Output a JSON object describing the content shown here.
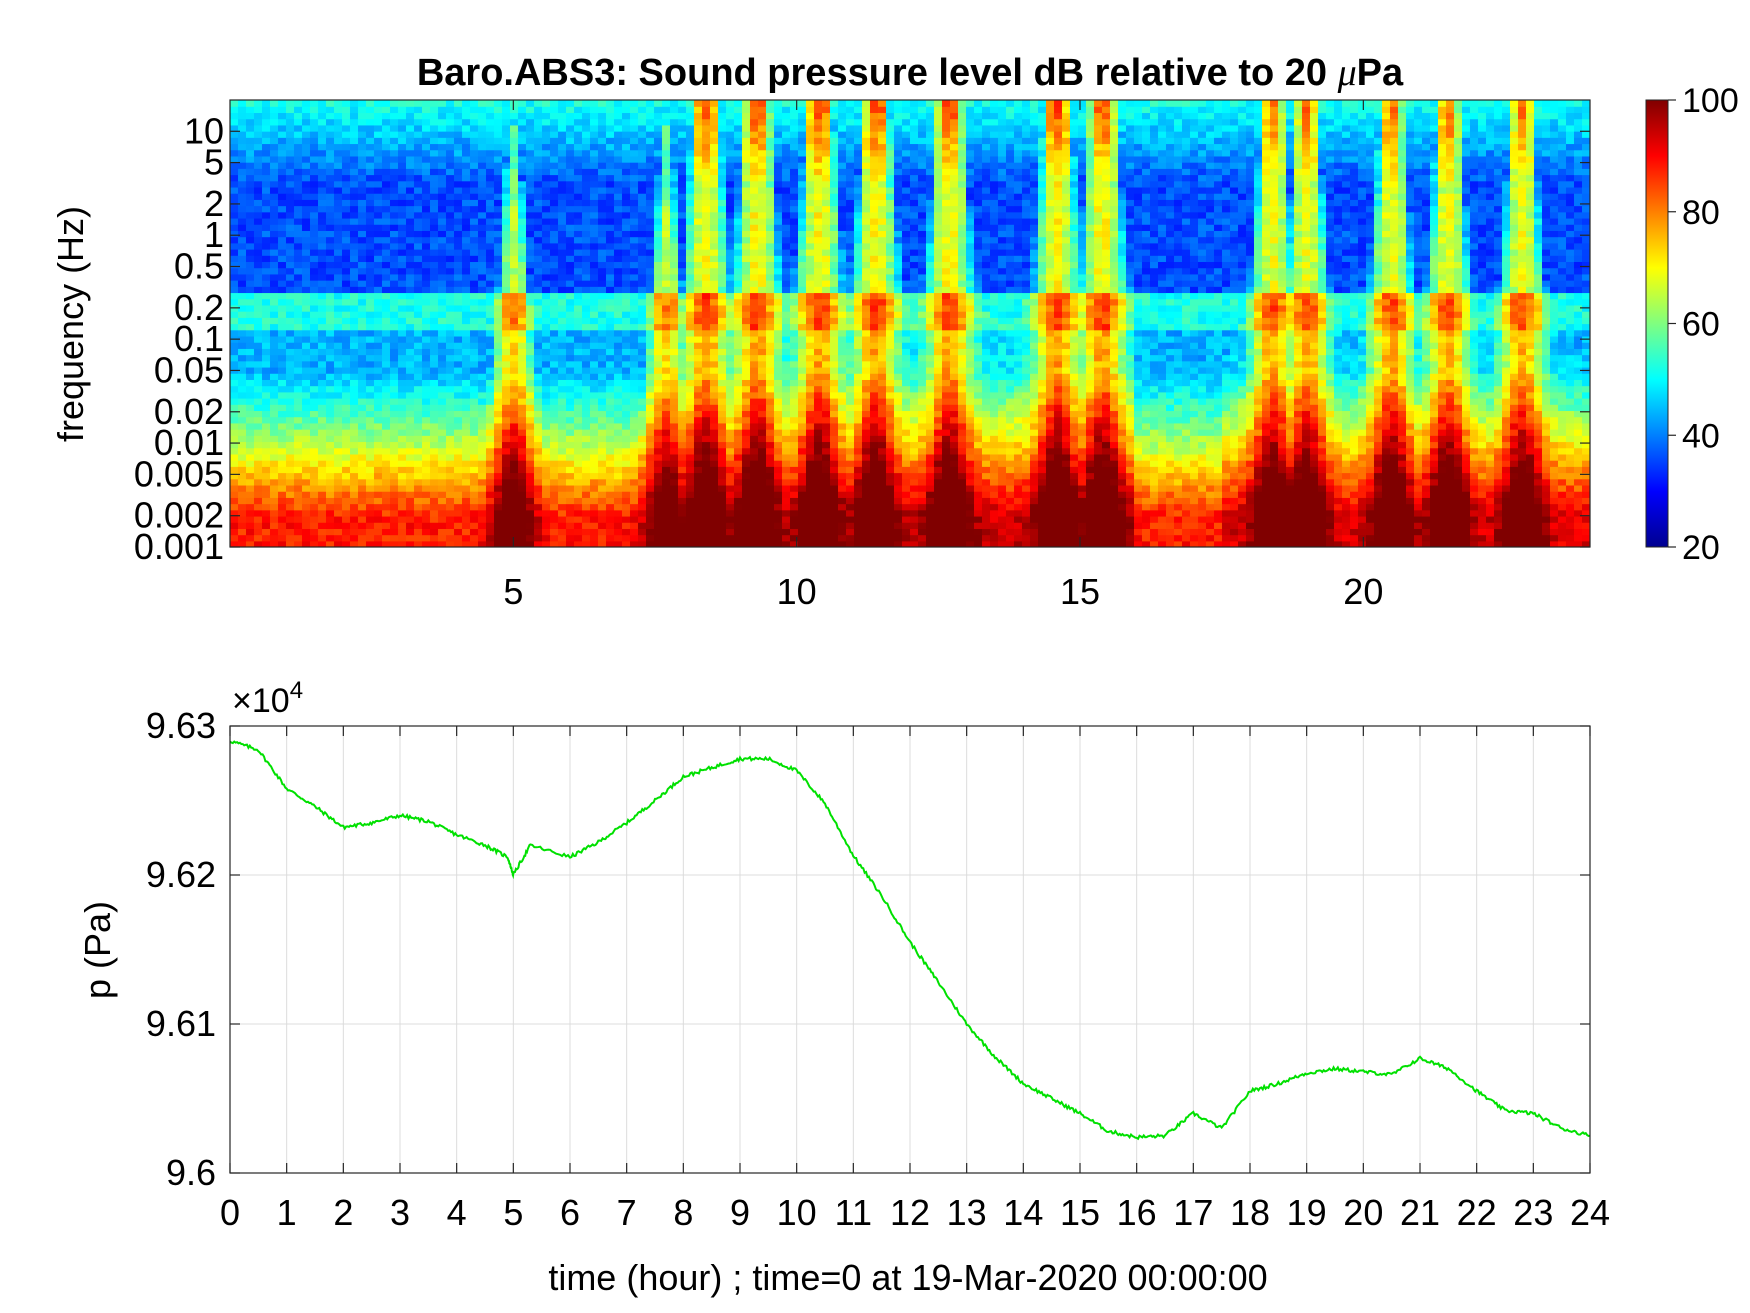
{
  "chart_data": [
    {
      "type": "heatmap",
      "title": "Baro.ABS3: Sound pressure level dB relative to 20 μPa",
      "title_prefix": "Baro.ABS3: Sound pressure level dB relative to 20 ",
      "title_unit_mu": "μ",
      "title_unit_rest": "Pa",
      "ylabel": "frequency (Hz)",
      "yscale": "log",
      "xlim": [
        0,
        24
      ],
      "ylim": [
        0.001,
        20
      ],
      "x_ticks": [
        5,
        10,
        15,
        20
      ],
      "x_tick_labels": [
        "5",
        "10",
        "15",
        "20"
      ],
      "y_ticks": [
        0.001,
        0.002,
        0.005,
        0.01,
        0.02,
        0.05,
        0.1,
        0.2,
        0.5,
        1,
        2,
        5,
        10
      ],
      "y_tick_labels": [
        "0.001",
        "0.002",
        "0.005",
        "0.01",
        "0.02",
        "0.05",
        "0.1",
        "0.2",
        "0.5",
        "1",
        "2",
        "5",
        "10"
      ],
      "colorbar": {
        "range": [
          20,
          100
        ],
        "ticks": [
          20,
          40,
          60,
          80,
          100
        ],
        "tick_labels": [
          "20",
          "40",
          "60",
          "80",
          "100"
        ],
        "colormap": "jet"
      },
      "activity_peaks_hour": [
        5,
        7.7,
        8.4,
        9.3,
        10.4,
        11.4,
        12.7,
        14.6,
        15.4,
        18.4,
        19.0,
        20.5,
        21.5,
        22.8
      ],
      "grid": false
    },
    {
      "type": "line",
      "ylabel": "p (Pa)",
      "xlabel": "time (hour) ; time=0 at 19-Mar-2020 00:00:00",
      "exponent_label": "×10",
      "exponent_power": "4",
      "xlim": [
        0,
        24
      ],
      "ylim": [
        96000,
        96300
      ],
      "x_ticks": [
        0,
        1,
        2,
        3,
        4,
        5,
        6,
        7,
        8,
        9,
        10,
        11,
        12,
        13,
        14,
        15,
        16,
        17,
        18,
        19,
        20,
        21,
        22,
        23,
        24
      ],
      "x_tick_labels": [
        "0",
        "1",
        "2",
        "3",
        "4",
        "5",
        "6",
        "7",
        "8",
        "9",
        "10",
        "11",
        "12",
        "13",
        "14",
        "15",
        "16",
        "17",
        "18",
        "19",
        "20",
        "21",
        "22",
        "23",
        "24"
      ],
      "y_ticks": [
        96000,
        96100,
        96200,
        96300
      ],
      "y_tick_labels": [
        "9.6",
        "9.61",
        "9.62",
        "9.63"
      ],
      "grid": true,
      "line_color": "#00e000",
      "series": [
        {
          "x": [
            0,
            0.5,
            1,
            1.5,
            2,
            2.5,
            3,
            3.5,
            4,
            4.5,
            4.9,
            5,
            5.3,
            6,
            6.5,
            7,
            7.5,
            8,
            8.5,
            9,
            9.5,
            10,
            10.5,
            11,
            11.5,
            12,
            12.5,
            13,
            13.5,
            14,
            14.5,
            15,
            15.5,
            16,
            16.5,
            17,
            17.5,
            18,
            18.5,
            19,
            19.5,
            20,
            20.5,
            21,
            21.5,
            22,
            22.5,
            23,
            23.5,
            24
          ],
          "y": [
            96290,
            96284,
            96258,
            96246,
            96232,
            96235,
            96240,
            96236,
            96227,
            96220,
            96212,
            96200,
            96220,
            96212,
            96222,
            96235,
            96250,
            96266,
            96272,
            96278,
            96278,
            96270,
            96248,
            96213,
            96186,
            96155,
            96128,
            96100,
            96078,
            96060,
            96050,
            96040,
            96028,
            96024,
            96025,
            96040,
            96030,
            96055,
            96060,
            96067,
            96070,
            96068,
            96066,
            96077,
            96070,
            96055,
            96042,
            96040,
            96030,
            96025
          ]
        }
      ]
    }
  ]
}
